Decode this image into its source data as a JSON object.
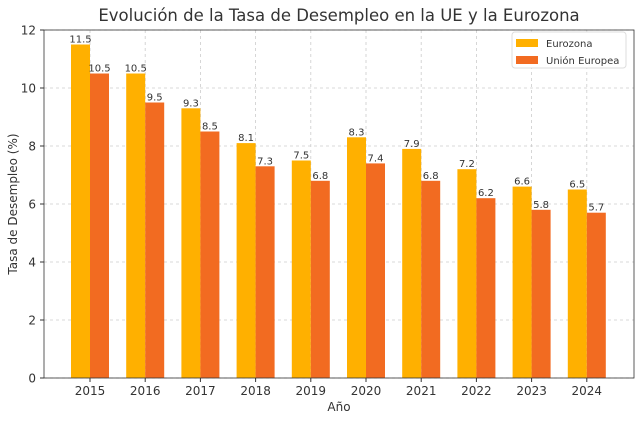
{
  "chart_data": {
    "type": "bar",
    "title": "Evolución de la Tasa de Desempleo en la UE y la Eurozona",
    "xlabel": "Año",
    "ylabel": "Tasa de Desempleo (%)",
    "categories": [
      "2015",
      "2016",
      "2017",
      "2018",
      "2019",
      "2020",
      "2021",
      "2022",
      "2023",
      "2024"
    ],
    "series": [
      {
        "name": "Eurozona",
        "color": "#FFB000",
        "values": [
          11.5,
          10.5,
          9.3,
          8.1,
          7.5,
          8.3,
          7.9,
          7.2,
          6.6,
          6.5
        ]
      },
      {
        "name": "Unión Europea",
        "color": "#F26B21",
        "values": [
          10.5,
          9.5,
          8.5,
          7.3,
          6.8,
          7.4,
          6.8,
          6.2,
          5.8,
          5.7
        ]
      }
    ],
    "ylim": [
      0,
      12
    ],
    "yticks": [
      0,
      2,
      4,
      6,
      8,
      10,
      12
    ],
    "grid": true,
    "legend": "top-right",
    "data_labels": true
  }
}
